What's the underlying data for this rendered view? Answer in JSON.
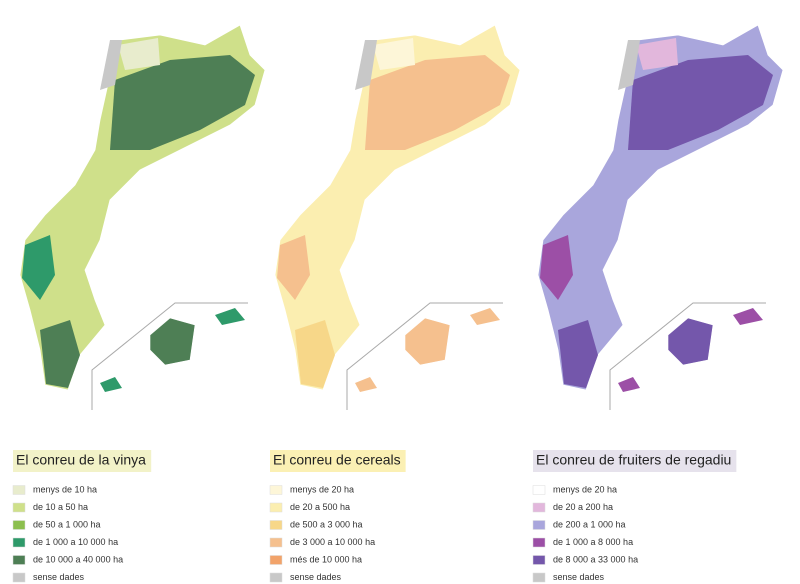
{
  "maps": [
    {
      "title": "El conreu de la vinya",
      "title_color": "#f2f2c8",
      "legend": [
        {
          "label": "menys de 10 ha",
          "color": "#e8eccd"
        },
        {
          "label": "de 10 a 50 ha",
          "color": "#cfe08a"
        },
        {
          "label": "de 50 a 1 000 ha",
          "color": "#8cbf4e"
        },
        {
          "label": "de 1 000 a 10 000 ha",
          "color": "#2e9a6a"
        },
        {
          "label": "de 10 000 a 40 000 ha",
          "color": "#4e7f55"
        },
        {
          "label": "sense dades",
          "color": "#c8c8c8"
        }
      ]
    },
    {
      "title": "El conreu de cereals",
      "title_color": "#fbf0b4",
      "legend": [
        {
          "label": "menys de 20 ha",
          "color": "#fdf6d8"
        },
        {
          "label": "de 20 a 500 ha",
          "color": "#fbeeb0"
        },
        {
          "label": "de 500 a 3 000 ha",
          "color": "#f7d789"
        },
        {
          "label": "de 3 000 a 10 000 ha",
          "color": "#f5c08e"
        },
        {
          "label": "més de 10 000 ha",
          "color": "#f2a36a"
        },
        {
          "label": "sense dades",
          "color": "#c8c8c8"
        }
      ]
    },
    {
      "title": "El conreu de fruiters de regadiu",
      "title_color": "#e6e2ec",
      "legend": [
        {
          "label": "menys de 20 ha",
          "color": "#ffffff"
        },
        {
          "label": "de 20 a 200 ha",
          "color": "#e2b7dc"
        },
        {
          "label": "de 200 a 1 000 ha",
          "color": "#a9a6dc"
        },
        {
          "label": "de 1 000 a 8 000 ha",
          "color": "#9c4fa6"
        },
        {
          "label": "de 8 000 a 33 000 ha",
          "color": "#7457ab"
        },
        {
          "label": "sense dades",
          "color": "#c8c8c8"
        }
      ]
    }
  ]
}
